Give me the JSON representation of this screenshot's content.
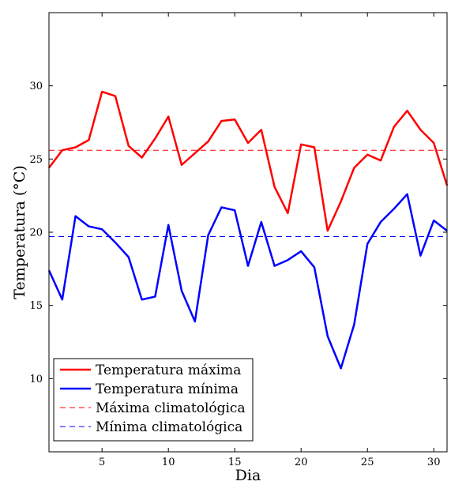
{
  "chart_data": {
    "type": "line",
    "xlabel": "Dia",
    "ylabel": "Temperatura (°C)",
    "xlim": [
      1,
      31
    ],
    "ylim": [
      5,
      35
    ],
    "xticks": [
      5,
      10,
      15,
      20,
      25,
      30
    ],
    "yticks": [
      10,
      15,
      20,
      25,
      30
    ],
    "legend_position": "bottom-left",
    "x": [
      1,
      2,
      3,
      4,
      5,
      6,
      7,
      8,
      9,
      10,
      11,
      12,
      13,
      14,
      15,
      16,
      17,
      18,
      19,
      20,
      21,
      22,
      23,
      24,
      25,
      26,
      27,
      28,
      29,
      30,
      31
    ],
    "series": [
      {
        "name": "Temperatura máxima",
        "color": "#ff0000",
        "style": "solid",
        "values": [
          24.4,
          25.6,
          25.8,
          26.3,
          29.6,
          29.3,
          25.9,
          25.1,
          26.4,
          27.9,
          24.6,
          25.4,
          26.2,
          27.6,
          27.7,
          26.1,
          27.0,
          23.1,
          21.3,
          26.0,
          25.8,
          20.1,
          22.1,
          24.4,
          25.3,
          24.9,
          27.2,
          28.3,
          27.0,
          26.1,
          23.2
        ]
      },
      {
        "name": "Temperatura mínima",
        "color": "#0000ff",
        "style": "solid",
        "values": [
          17.4,
          15.4,
          21.1,
          20.4,
          20.2,
          19.3,
          18.3,
          15.4,
          15.6,
          20.5,
          16.0,
          13.9,
          19.8,
          21.7,
          21.5,
          17.7,
          20.7,
          17.7,
          18.1,
          18.7,
          17.6,
          12.9,
          10.7,
          13.7,
          19.2,
          20.7,
          21.6,
          22.6,
          18.4,
          20.8,
          20.1
        ]
      },
      {
        "name": "Máxima climatológica",
        "color": "#ff0000",
        "style": "dashed",
        "values": [
          25.6,
          25.6,
          25.6,
          25.6,
          25.6,
          25.6,
          25.6,
          25.6,
          25.6,
          25.6,
          25.6,
          25.6,
          25.6,
          25.6,
          25.6,
          25.6,
          25.6,
          25.6,
          25.6,
          25.6,
          25.6,
          25.6,
          25.6,
          25.6,
          25.6,
          25.6,
          25.6,
          25.6,
          25.6,
          25.6,
          25.6
        ]
      },
      {
        "name": "Mínima climatológica",
        "color": "#0000ff",
        "style": "dashed",
        "values": [
          19.7,
          19.7,
          19.7,
          19.7,
          19.7,
          19.7,
          19.7,
          19.7,
          19.7,
          19.7,
          19.7,
          19.7,
          19.7,
          19.7,
          19.7,
          19.7,
          19.7,
          19.7,
          19.7,
          19.7,
          19.7,
          19.7,
          19.7,
          19.7,
          19.7,
          19.7,
          19.7,
          19.7,
          19.7,
          19.7,
          19.7
        ]
      }
    ]
  }
}
